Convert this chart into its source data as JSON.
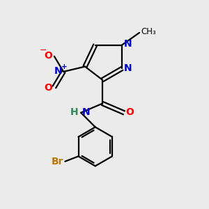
{
  "background_color": "#ebebeb",
  "atom_colors": {
    "C": "#000000",
    "N": "#0000cc",
    "O": "#ff0000",
    "Br": "#bb7700",
    "H": "#2e8b57",
    "NH_N": "#0000cc"
  },
  "figsize": [
    3.0,
    3.0
  ],
  "dpi": 100
}
